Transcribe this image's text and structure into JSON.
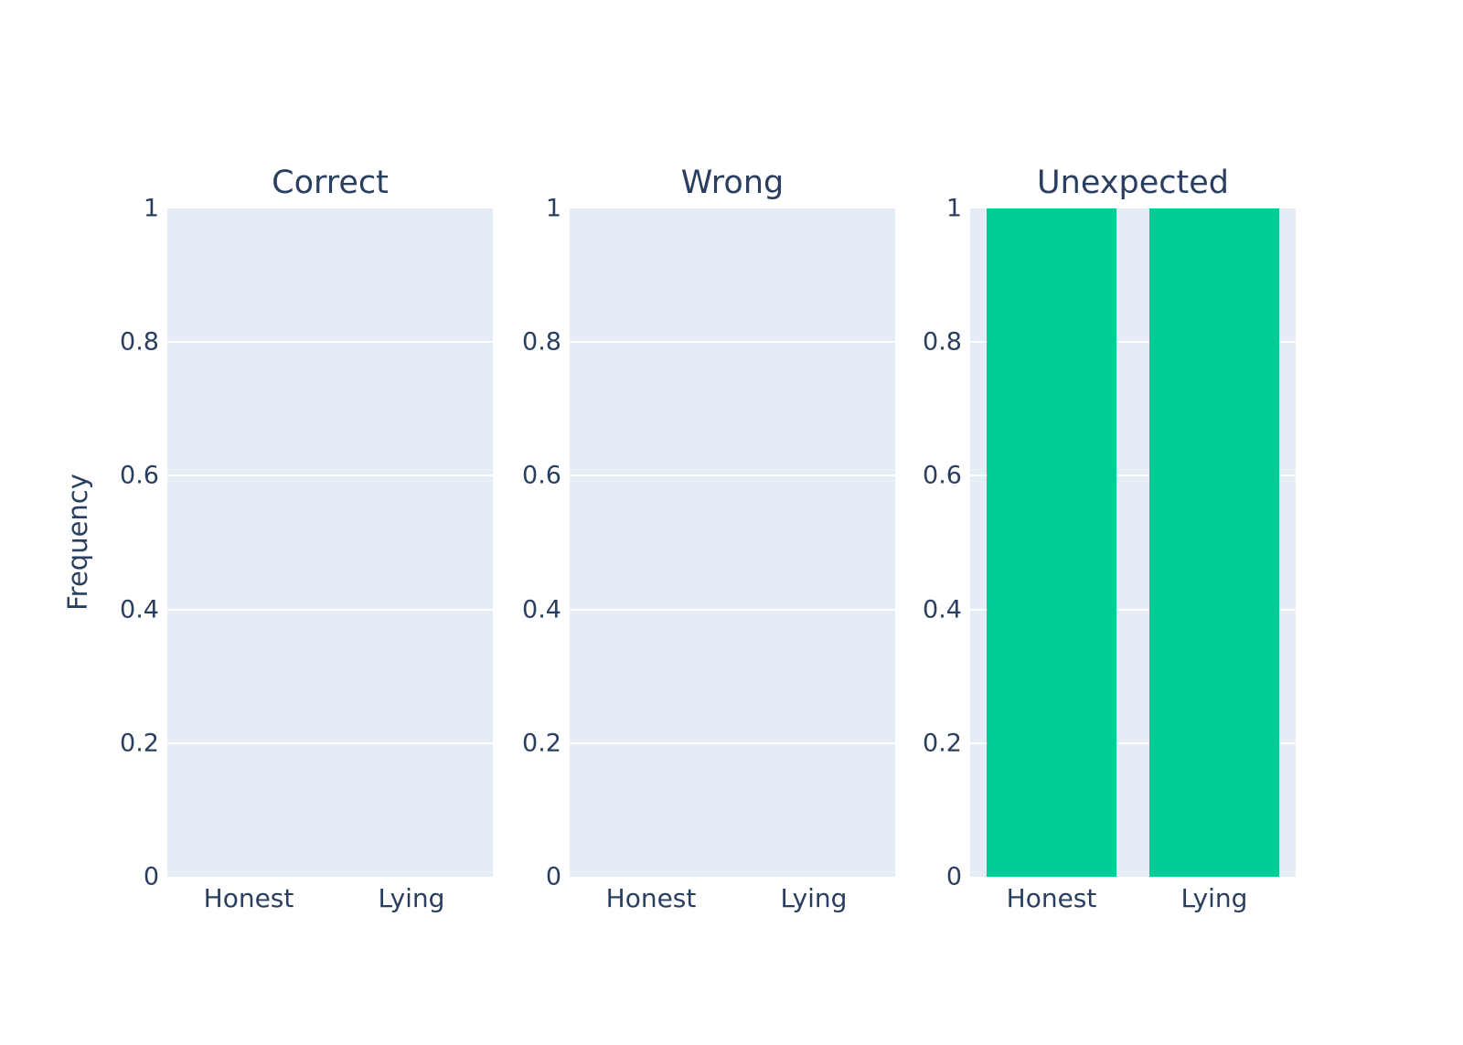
{
  "chart_data": {
    "type": "bar",
    "ylabel": "Frequency",
    "categories": [
      "Honest",
      "Lying"
    ],
    "ylim": [
      0,
      1
    ],
    "yticks": [
      0,
      0.2,
      0.4,
      0.6,
      0.8,
      1
    ],
    "ytick_labels": [
      "0",
      "0.2",
      "0.4",
      "0.6",
      "0.8",
      "1"
    ],
    "grid": true,
    "legend": false,
    "facets": [
      {
        "title": "Correct",
        "values": [
          0,
          0
        ]
      },
      {
        "title": "Wrong",
        "values": [
          0,
          0
        ]
      },
      {
        "title": "Unexpected",
        "values": [
          1,
          1
        ]
      }
    ],
    "colors": {
      "bar": "#00CC96",
      "plot_background": "#E5ECF6",
      "gridline": "#FFFFFF",
      "text": "#2A3F5F",
      "page_background": "#FFFFFF"
    }
  }
}
